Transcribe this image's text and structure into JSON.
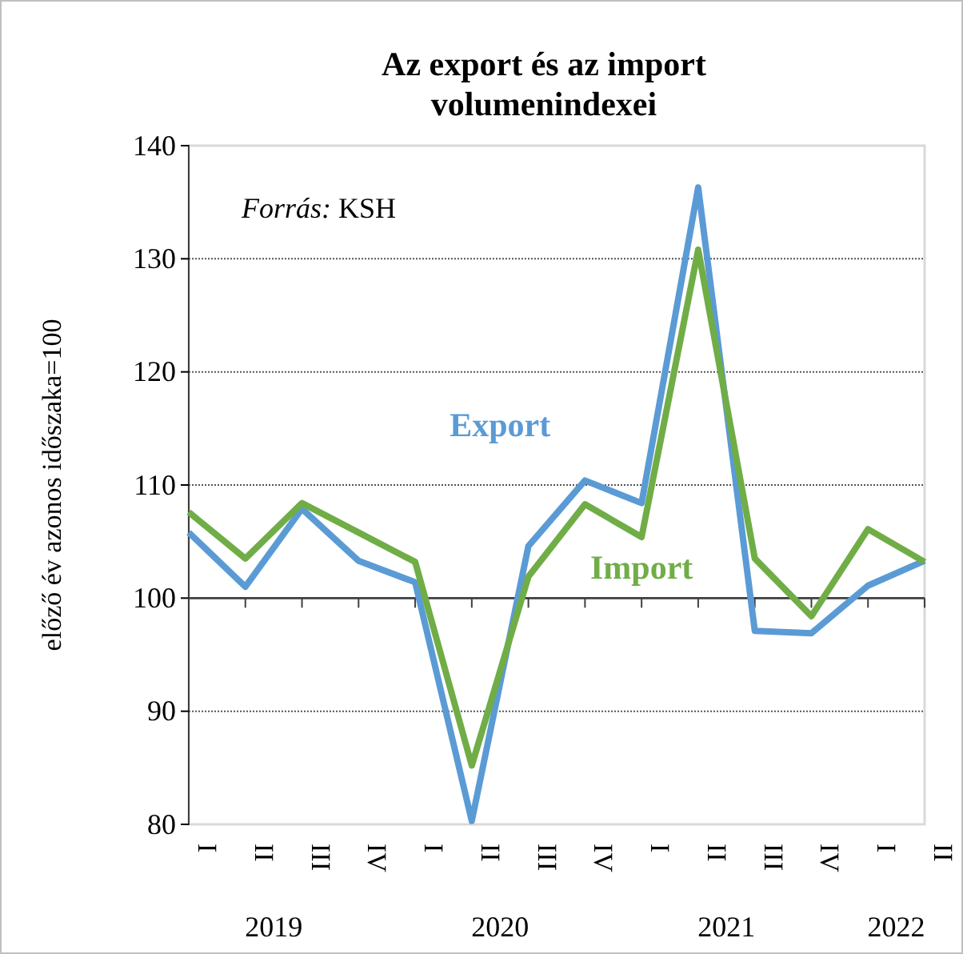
{
  "chart_data": {
    "type": "line",
    "title": "Az export és az import volumenindexei",
    "ylabel": "előző év azonos időszaka=100",
    "categories": [
      "I",
      "II",
      "III",
      "IV",
      "I",
      "II",
      "III",
      "IV",
      "I",
      "II",
      "III",
      "IV",
      "I",
      "II"
    ],
    "series": [
      {
        "name": "Export",
        "color": "#5b9bd5",
        "values": [
          105.8,
          101.0,
          107.9,
          103.3,
          101.4,
          80.3,
          104.6,
          110.4,
          108.4,
          136.3,
          97.1,
          96.9,
          101.1,
          103.3
        ]
      },
      {
        "name": "Import",
        "color": "#70ad47",
        "values": [
          107.6,
          103.5,
          108.4,
          105.8,
          103.2,
          85.2,
          101.9,
          108.3,
          105.4,
          130.8,
          103.5,
          98.4,
          106.1,
          103.2
        ]
      }
    ],
    "ref_lines": [
      {
        "axis": "y",
        "value": 100,
        "color": "#404040"
      }
    ],
    "ylim": [
      80,
      140
    ],
    "yticks": [
      80,
      90,
      100,
      110,
      120,
      130,
      140
    ],
    "grid": "y",
    "legend": false,
    "annotations": [
      "Forrás: KSH",
      "2019",
      "2020",
      "2021",
      "2022"
    ]
  }
}
